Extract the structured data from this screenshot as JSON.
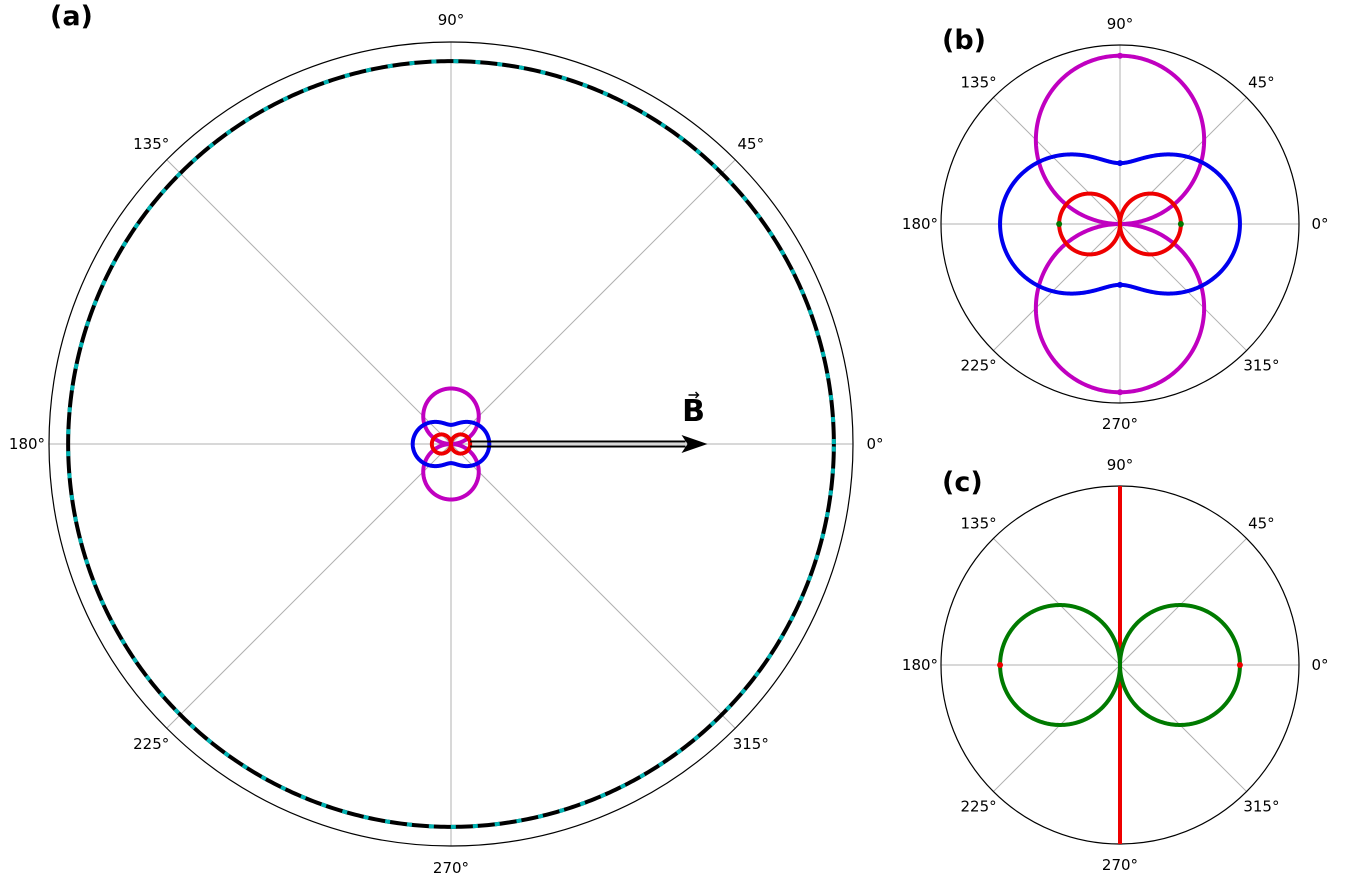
{
  "colors": {
    "background": "#ffffff",
    "frame": "#000000",
    "grid": "#b0b0b0",
    "magenta": "#c000c0",
    "blue": "#0000ee",
    "red": "#ee0000",
    "green": "#007a00",
    "cyan": "#00b4b4",
    "black": "#000000"
  },
  "panels": [
    {
      "id": "a",
      "label": "(a)"
    },
    {
      "id": "b",
      "label": "(b)"
    },
    {
      "id": "c",
      "label": "(c)"
    }
  ],
  "field_label": "B",
  "theta_ticks": [
    "0°",
    "45°",
    "90°",
    "135°",
    "180°",
    "225°",
    "270°",
    "315°"
  ],
  "chart_data": [
    {
      "panel": "a",
      "type": "polar",
      "grid": true,
      "rlim": [
        0,
        1.05
      ],
      "theta_ticks_deg": [
        0,
        45,
        90,
        135,
        180,
        225,
        270,
        315
      ],
      "annotation": {
        "text": "B",
        "arrow_direction_deg": 0,
        "arrow_r": [
          0.05,
          0.67
        ]
      },
      "series": [
        {
          "type": "line",
          "color": "black",
          "style": "solid",
          "formula": "constant",
          "r": 1.0
        },
        {
          "type": "line",
          "color": "cyan",
          "style": "dashed",
          "formula": "constant",
          "r": 1.0
        },
        {
          "type": "line",
          "color": "magenta",
          "style": "solid",
          "formula": "|sin θ|",
          "amplitude": 0.145
        },
        {
          "type": "line",
          "color": "blue",
          "style": "solid",
          "formula": "hybrid",
          "a": 0.1,
          "b": 0.05
        },
        {
          "type": "line",
          "color": "red",
          "style": "solid",
          "formula": "|cos θ|",
          "amplitude": 0.05
        }
      ]
    },
    {
      "panel": "b",
      "type": "polar",
      "grid": true,
      "rlim": [
        0,
        1.0
      ],
      "theta_ticks_deg": [
        0,
        45,
        90,
        135,
        180,
        225,
        270,
        315
      ],
      "series": [
        {
          "type": "line",
          "color": "magenta",
          "style": "solid",
          "formula": "|sin θ|",
          "amplitude": 0.94
        },
        {
          "type": "line",
          "color": "blue",
          "style": "solid",
          "formula": "hybrid",
          "a": 0.67,
          "b": 0.34
        },
        {
          "type": "line",
          "color": "red",
          "style": "solid",
          "formula": "|cos θ|",
          "amplitude": 0.34
        }
      ],
      "markers": [
        {
          "color": "blue",
          "theta_deg": 90,
          "r": 0.34
        },
        {
          "color": "blue",
          "theta_deg": 270,
          "r": 0.34
        },
        {
          "color": "magenta",
          "theta_deg": 90,
          "r": 0.94
        },
        {
          "color": "magenta",
          "theta_deg": 270,
          "r": 0.94
        },
        {
          "color": "green",
          "theta_deg": 0,
          "r": 0.34
        },
        {
          "color": "green",
          "theta_deg": 180,
          "r": 0.34
        }
      ]
    },
    {
      "panel": "c",
      "type": "polar",
      "grid": true,
      "rlim": [
        0,
        1.0
      ],
      "theta_ticks_deg": [
        0,
        45,
        90,
        135,
        180,
        225,
        270,
        315
      ],
      "series": [
        {
          "type": "line",
          "color": "red",
          "style": "solid",
          "formula": "vertical line",
          "theta_deg": [
            90,
            270
          ]
        },
        {
          "type": "line",
          "color": "green",
          "style": "solid",
          "formula": "|cos θ|",
          "amplitude": 0.67
        }
      ],
      "markers": [
        {
          "color": "red",
          "theta_deg": 0,
          "r": 0.67
        },
        {
          "color": "red",
          "theta_deg": 180,
          "r": 0.67
        }
      ]
    }
  ]
}
